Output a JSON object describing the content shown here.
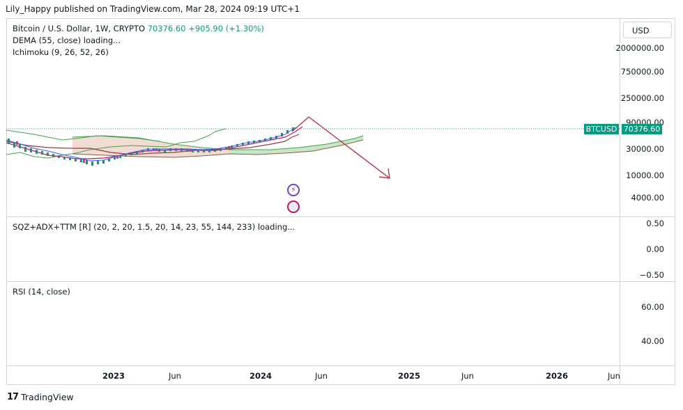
{
  "header": {
    "publisher": "Lily_Happy published on TradingView.com, Mar 28, 2024 09:19 UTC+1"
  },
  "main_pane": {
    "symbol_line": "Bitcoin / U.S. Dollar, 1W, CRYPTO",
    "last_price": "70376.60",
    "change": "+905.90 (+1.30%)",
    "indicator1": "DEMA (55, close) loading...",
    "indicator2": "Ichimoku (9, 26, 52, 26)",
    "y_labels": [
      "2000000.00",
      "750000.00",
      "250000.00",
      "90000.00",
      "30000.00",
      "10000.00",
      "4000.00"
    ],
    "currency_button": "USD",
    "price_tag_symbol": "BTCUSD",
    "price_tag_value": "70376.60"
  },
  "sqz_pane": {
    "title": "SQZ+ADX+TTM [R] (20, 2, 20, 1.5, 20, 14, 23, 55, 144, 233) loading...",
    "y_labels": [
      "0.50",
      "0.00",
      "−0.50"
    ]
  },
  "rsi_pane": {
    "title": "RSI (14, close)",
    "y_labels": [
      "60.00",
      "40.00"
    ]
  },
  "x_axis": {
    "labels": [
      {
        "text": "2023",
        "year": true
      },
      {
        "text": "Jun",
        "year": false
      },
      {
        "text": "2024",
        "year": true
      },
      {
        "text": "Jun",
        "year": false
      },
      {
        "text": "2025",
        "year": true
      },
      {
        "text": "Jun",
        "year": false
      },
      {
        "text": "2026",
        "year": true
      },
      {
        "text": "Jun",
        "year": false
      }
    ]
  },
  "footer": {
    "brand": "TradingView",
    "logo_mark": "17"
  },
  "colors": {
    "up": "#089981",
    "down": "#f23645",
    "cloud_pos": "#a5d6a7",
    "cloud_neg": "#e8c4b8",
    "arrow": "#b2384a"
  },
  "icons": [
    "lightning-event-icon",
    "flag-event-icon",
    "tradingview-logo-icon"
  ]
}
